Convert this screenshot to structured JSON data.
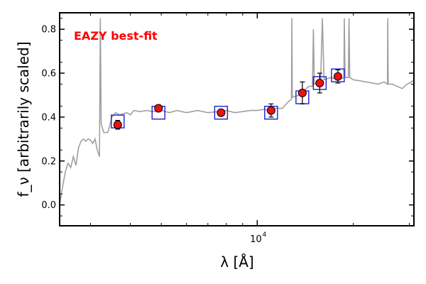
{
  "chart_data": {
    "type": "scatter",
    "title": "",
    "annotation": "EAZY best-fit",
    "xlabel": "λ [Å]",
    "ylabel": "f_ν [arbitrarily scaled]",
    "xscale": "log",
    "xlim": [
      2400,
      31000
    ],
    "ylim": [
      -0.095,
      0.875
    ],
    "yticks": [
      0.0,
      0.2,
      0.4,
      0.6,
      0.8
    ],
    "ytick_labels": [
      "0.0",
      "0.2",
      "0.4",
      "0.6",
      "0.8"
    ],
    "xticks": [
      10000
    ],
    "xtick_labels": [
      "10",
      "4"
    ],
    "grid": false,
    "colors": {
      "sed_line": "#a0a0a0",
      "model_box": "#1f1fd0",
      "obs_point": "#ee1111",
      "annotation": "#ff0000"
    },
    "sed_curve": [
      [
        2400,
        0.0
      ],
      [
        2450,
        0.08
      ],
      [
        2500,
        0.15
      ],
      [
        2550,
        0.19
      ],
      [
        2600,
        0.17
      ],
      [
        2650,
        0.22
      ],
      [
        2700,
        0.18
      ],
      [
        2750,
        0.26
      ],
      [
        2800,
        0.29
      ],
      [
        2850,
        0.3
      ],
      [
        2900,
        0.29
      ],
      [
        2950,
        0.3
      ],
      [
        3000,
        0.295
      ],
      [
        3050,
        0.28
      ],
      [
        3100,
        0.3
      ],
      [
        3150,
        0.25
      ],
      [
        3200,
        0.22
      ],
      [
        3220,
        0.85
      ],
      [
        3240,
        0.37
      ],
      [
        3300,
        0.33
      ],
      [
        3400,
        0.33
      ],
      [
        3500,
        0.4
      ],
      [
        3600,
        0.42
      ],
      [
        3700,
        0.41
      ],
      [
        3800,
        0.415
      ],
      [
        3900,
        0.42
      ],
      [
        4000,
        0.41
      ],
      [
        4100,
        0.43
      ],
      [
        4300,
        0.425
      ],
      [
        4500,
        0.43
      ],
      [
        4700,
        0.425
      ],
      [
        5000,
        0.43
      ],
      [
        5300,
        0.42
      ],
      [
        5600,
        0.43
      ],
      [
        6000,
        0.42
      ],
      [
        6500,
        0.43
      ],
      [
        7000,
        0.42
      ],
      [
        7500,
        0.425
      ],
      [
        8000,
        0.43
      ],
      [
        8500,
        0.42
      ],
      [
        9000,
        0.425
      ],
      [
        9500,
        0.43
      ],
      [
        10000,
        0.43
      ],
      [
        10500,
        0.435
      ],
      [
        11000,
        0.43
      ],
      [
        11500,
        0.44
      ],
      [
        12000,
        0.44
      ],
      [
        12500,
        0.47
      ],
      [
        12800,
        0.48
      ],
      [
        12840,
        0.85
      ],
      [
        12880,
        0.49
      ],
      [
        13500,
        0.5
      ],
      [
        14000,
        0.52
      ],
      [
        14500,
        0.54
      ],
      [
        14900,
        0.54
      ],
      [
        15000,
        0.8
      ],
      [
        15100,
        0.55
      ],
      [
        15800,
        0.56
      ],
      [
        16000,
        0.85
      ],
      [
        16200,
        0.57
      ],
      [
        17000,
        0.58
      ],
      [
        18000,
        0.57
      ],
      [
        18700,
        0.58
      ],
      [
        18750,
        0.85
      ],
      [
        18850,
        0.58
      ],
      [
        19300,
        0.58
      ],
      [
        19400,
        0.85
      ],
      [
        19500,
        0.58
      ],
      [
        20000,
        0.57
      ],
      [
        22000,
        0.56
      ],
      [
        24000,
        0.55
      ],
      [
        25000,
        0.56
      ],
      [
        25600,
        0.55
      ],
      [
        25650,
        0.85
      ],
      [
        25750,
        0.55
      ],
      [
        26500,
        0.55
      ],
      [
        27500,
        0.54
      ],
      [
        28500,
        0.53
      ],
      [
        29500,
        0.55
      ],
      [
        30500,
        0.56
      ],
      [
        31000,
        0.57
      ]
    ],
    "series": [
      {
        "marker": "square",
        "x": [
          3650,
          4900,
          7700,
          11050,
          13850,
          15700,
          17900
        ],
        "y": [
          0.38,
          0.42,
          0.42,
          0.42,
          0.49,
          0.555,
          0.59
        ]
      },
      {
        "marker": "circle",
        "x": [
          3650,
          4900,
          7700,
          11050,
          13850,
          15700,
          17900
        ],
        "y": [
          0.365,
          0.44,
          0.42,
          0.43,
          0.51,
          0.555,
          0.585
        ],
        "yerr": [
          0.02,
          0.015,
          0.015,
          0.03,
          0.05,
          0.045,
          0.03
        ]
      }
    ]
  }
}
